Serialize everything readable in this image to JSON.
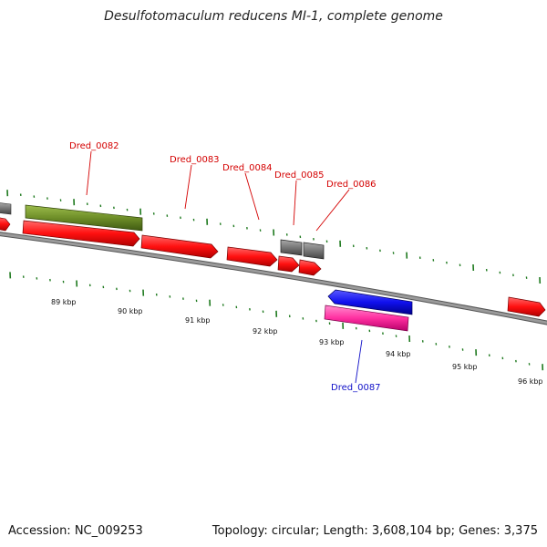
{
  "title": "Desulfotomaculum reducens MI-1, complete genome",
  "footer": {
    "accession": "Accession: NC_009253",
    "summary": "Topology: circular; Length: 3,608,104 bp; Genes: 3,375"
  },
  "colors": {
    "tick": "#1f7a1f",
    "backbone": "#8a8a8a",
    "forward_label": "#d40000",
    "reverse_label": "#1010c8",
    "gene_red": "#ff1a1a",
    "gene_olive": "#6e8e28",
    "gene_gray": "#777777",
    "gene_blue": "#1010ee",
    "gene_pink": "#ff2fa0"
  },
  "ticks": {
    "labels": [
      "89 kbp",
      "90 kbp",
      "91 kbp",
      "92 kbp",
      "93 kbp",
      "94 kbp",
      "95 kbp",
      "96 kbp"
    ]
  },
  "gene_labels": {
    "g82": "Dred_0082",
    "g83": "Dred_0083",
    "g84": "Dred_0084",
    "g85": "Dred_0085",
    "g86": "Dred_0086",
    "g87": "Dred_0087"
  }
}
